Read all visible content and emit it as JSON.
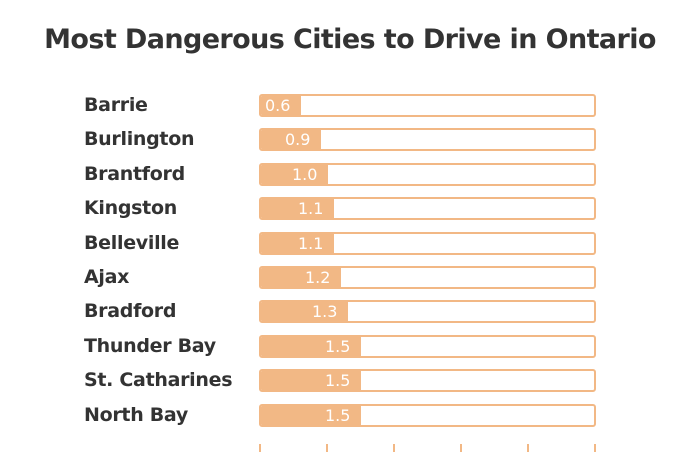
{
  "chart_data": {
    "type": "bar",
    "orientation": "horizontal",
    "title": "Most Dangerous Cities to Drive in Ontario",
    "categories": [
      "Barrie",
      "Burlington",
      "Brantford",
      "Kingston",
      "Belleville",
      "Ajax",
      "Bradford",
      "Thunder Bay",
      "St. Catharines",
      "North Bay"
    ],
    "values": [
      0.6,
      0.9,
      1.0,
      1.1,
      1.1,
      1.2,
      1.3,
      1.5,
      1.5,
      1.5
    ],
    "value_labels": [
      "0.6",
      "0.9",
      "1.0",
      "1.1",
      "1.1",
      "1.2",
      "1.3",
      "1.5",
      "1.5",
      "1.5"
    ],
    "xlim": [
      0,
      5
    ],
    "xlabel": "",
    "ylabel": "",
    "bar_color": "#f2b885"
  }
}
